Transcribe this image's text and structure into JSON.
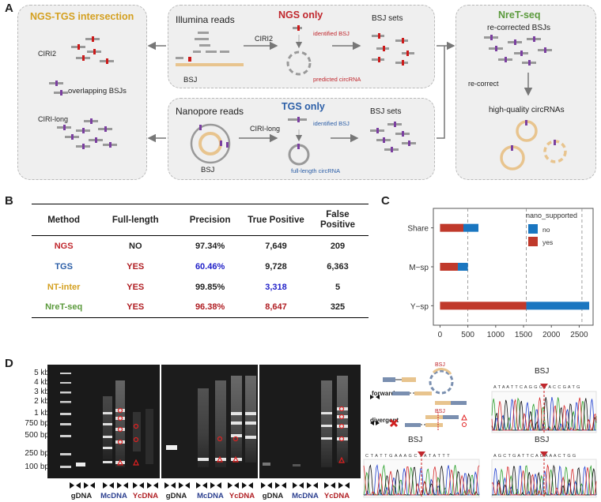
{
  "panel_a": {
    "letter": "A",
    "ngs_tgs": {
      "title": "NGS-TGS intersection",
      "ciri2": "CIRI2",
      "overlap": "overlapping BSJs",
      "ciri_long": "CIRI-long"
    },
    "ngs_only": {
      "title": "NGS only",
      "reads": "Illumina reads",
      "tool": "CIRI2",
      "identified": "identified BSJ",
      "predicted": "predicted circRNA",
      "bsj_sets": "BSJ sets",
      "bsj": "BSJ"
    },
    "tgs_only": {
      "title": "TGS only",
      "reads": "Nanopore reads",
      "tool": "CIRI-long",
      "identified": "identified BSJ",
      "fulllength": "full-length circRNA",
      "bsj_sets": "BSJ sets",
      "bsj": "BSJ"
    },
    "nret": {
      "title": "NreT-seq",
      "recorrected": "re-corrected BSJs",
      "recorrect": "re-correct",
      "hq": "high-quality circRNAs"
    }
  },
  "panel_b": {
    "letter": "B",
    "headers": [
      "Method",
      "Full-length",
      "Precision",
      "True Positive",
      "False Positive"
    ],
    "rows": [
      {
        "method": "NGS",
        "full": "NO",
        "precision": "97.34%",
        "tp": "7,649",
        "fp": "209"
      },
      {
        "method": "TGS",
        "full": "YES",
        "precision": "60.46%",
        "tp": "9,728",
        "fp": "6,363"
      },
      {
        "method": "NT-inter",
        "full": "YES",
        "precision": "99.85%",
        "tp": "3,318",
        "fp": "5"
      },
      {
        "method": "NreT-seq",
        "full": "YES",
        "precision": "96.38%",
        "tp": "8,647",
        "fp": "325"
      }
    ],
    "colors": {
      "ngs": "#c0272d",
      "tgs": "#2b5ea7",
      "nt": "#d4a020",
      "nret": "#5b9a3c",
      "yes": "#b01e23",
      "blue": "#1f1fc8"
    }
  },
  "chart_data": {
    "type": "bar",
    "orientation": "horizontal",
    "stacked": true,
    "categories": [
      "Share",
      "M−sp",
      "Y−sp"
    ],
    "series": [
      {
        "name": "yes",
        "color": "#c0392b",
        "values": [
          420,
          320,
          1550
        ]
      },
      {
        "name": "no",
        "color": "#1a76c0",
        "values": [
          270,
          180,
          1130
        ]
      }
    ],
    "legend_title": "nano_supported",
    "legend_labels": [
      "no",
      "yes"
    ],
    "xlim": [
      -120,
      2750
    ],
    "xticks": [
      0,
      500,
      1000,
      1500,
      2000,
      2500
    ],
    "xtick_labels": [
      "0",
      "500",
      "1000",
      "1500",
      "2000",
      "2500"
    ],
    "dashed_lines": [
      500,
      1550,
      2550
    ],
    "letter": "C"
  },
  "panel_d": {
    "letter": "D",
    "ladder": [
      "5 kb",
      "4 kb",
      "3 kb",
      "2 kb",
      "1 kb",
      "750 bp",
      "500 bp",
      "250 bp",
      "100 bp"
    ],
    "lanes": [
      "gDNA",
      "McDNA",
      "YcDNA",
      "gDNA",
      "McDNA",
      "YcDNA",
      "gDNA",
      "McDNA",
      "YcDNA"
    ],
    "forward": "forward",
    "divergent": "divergent",
    "bsj": "BSJ",
    "seq1": "A T A A T T C A G G C T A C C G A T G",
    "seq2": "C T A T T G A A A G C T A T A T T T",
    "seq3": "A G C T G A T T C A G A A A C T G G"
  }
}
